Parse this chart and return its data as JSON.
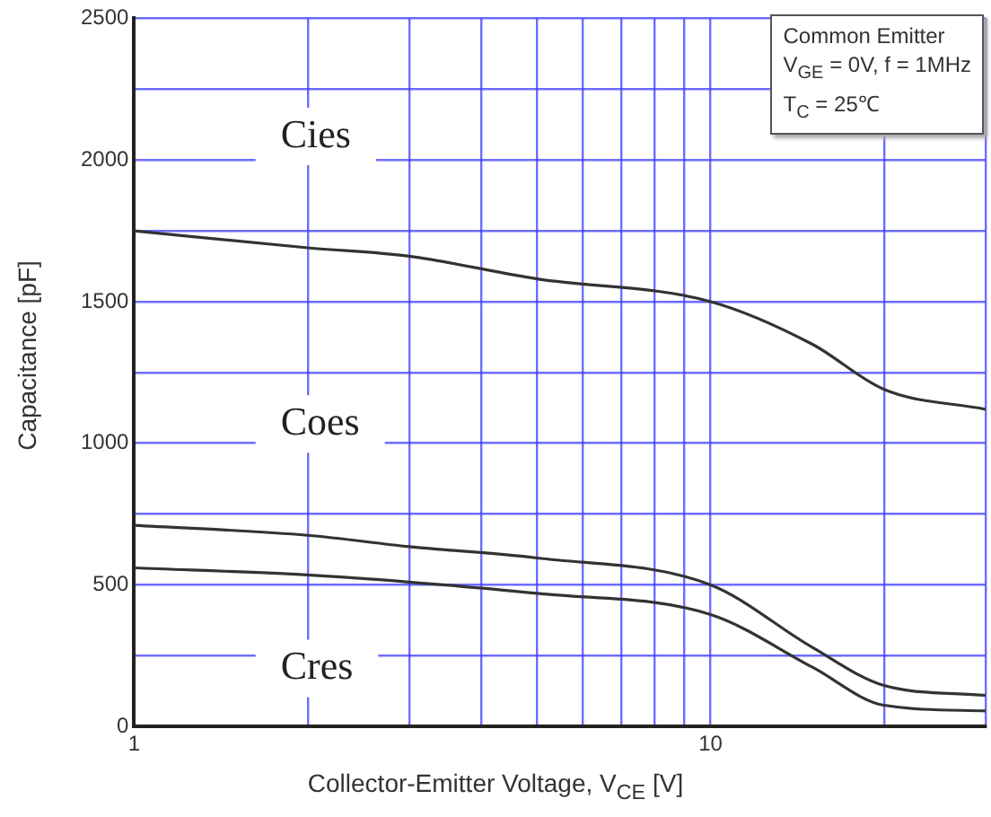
{
  "chart_data": {
    "type": "line",
    "xlabel": "Collector-Emitter Voltage, V$_{CE}$ [V]",
    "ylabel": "Capacitance [pF]",
    "log": "x",
    "x": [
      1,
      2,
      3,
      5,
      10,
      15,
      20,
      30
    ],
    "series": [
      {
        "name": "Cies",
        "color": "#333333",
        "values": [
          1750,
          1690,
          1660,
          1580,
          1500,
          1350,
          1190,
          1120
        ]
      },
      {
        "name": "Coes",
        "color": "#333333",
        "values": [
          710,
          675,
          635,
          595,
          500,
          280,
          145,
          110
        ]
      },
      {
        "name": "Cres",
        "color": "#333333",
        "values": [
          560,
          535,
          510,
          470,
          395,
          210,
          75,
          55
        ]
      }
    ],
    "xlim": [
      1,
      30
    ],
    "xticks": [
      1,
      {
        "value": 2,
        "label": null
      },
      {
        "value": 3,
        "label": null
      },
      {
        "value": 4,
        "label": null
      },
      {
        "value": 5,
        "label": null
      },
      {
        "value": 6,
        "label": null
      },
      {
        "value": 7,
        "label": null
      },
      {
        "value": 8,
        "label": null
      },
      {
        "value": 9,
        "label": null
      },
      10,
      {
        "value": 20,
        "label": null
      },
      {
        "value": 30,
        "label": null
      }
    ],
    "ylim": [
      0,
      2500
    ],
    "yticks": [
      0,
      {
        "value": 250,
        "label": null
      },
      500,
      {
        "value": 750,
        "label": null
      },
      1000,
      {
        "value": 1250,
        "label": null
      },
      1500,
      {
        "value": 1750,
        "label": null
      },
      2000,
      {
        "value": 2250,
        "label": null
      },
      2500
    ],
    "grid": true,
    "legend": false,
    "marker": "none",
    "line_style": "solid",
    "annotations": [
      "Common Emitter",
      "V$_{GE}$ = 0V, f = 1MHz",
      "T$_{C}$ = 25℃"
    ]
  }
}
